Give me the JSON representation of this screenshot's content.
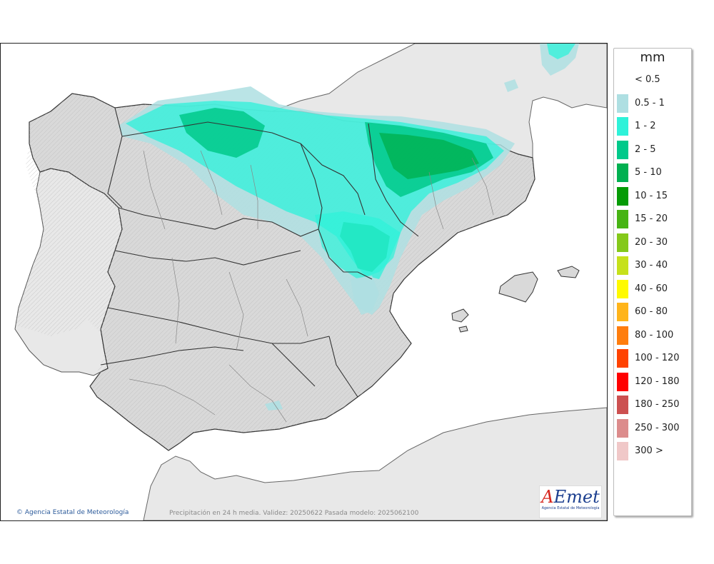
{
  "map": {
    "caption": "Precipitación en 24 h media. Validez: 20250622 Pasada modelo: 2025062100",
    "copyright": "Agencia Estatal de Meteorología",
    "logo": {
      "word_a": "A",
      "word_rest": "Emet",
      "subtitle": "Agencia Estatal de Meteorología"
    },
    "colors": {
      "sea": "#ffffff",
      "land": "#d9d9d9",
      "foreign_land": "#e8e8e8",
      "relief": "#b4b4b4"
    }
  },
  "legend": {
    "unit": "mm",
    "items": [
      {
        "label": "< 0.5",
        "color": "#ffffff"
      },
      {
        "label": "0.5 - 1",
        "color": "#aedfe2"
      },
      {
        "label": "1 - 2",
        "color": "#2ef2d9"
      },
      {
        "label": "2 - 5",
        "color": "#00c98a"
      },
      {
        "label": "5 - 10",
        "color": "#00b050"
      },
      {
        "label": "10 - 15",
        "color": "#059b05"
      },
      {
        "label": "15 - 20",
        "color": "#47b414"
      },
      {
        "label": "20 - 30",
        "color": "#84c91a"
      },
      {
        "label": "30 - 40",
        "color": "#c6e11b"
      },
      {
        "label": "40 - 60",
        "color": "#fffa00"
      },
      {
        "label": "60 - 80",
        "color": "#ffb41a"
      },
      {
        "label": "80 - 100",
        "color": "#ff7d0d"
      },
      {
        "label": "100 - 120",
        "color": "#ff4200"
      },
      {
        "label": "120 - 180",
        "color": "#ff0000"
      },
      {
        "label": "180 - 250",
        "color": "#cc5050"
      },
      {
        "label": "250 - 300",
        "color": "#dc8c8c"
      },
      {
        "label": "300 >",
        "color": "#f0c8c8"
      }
    ]
  }
}
